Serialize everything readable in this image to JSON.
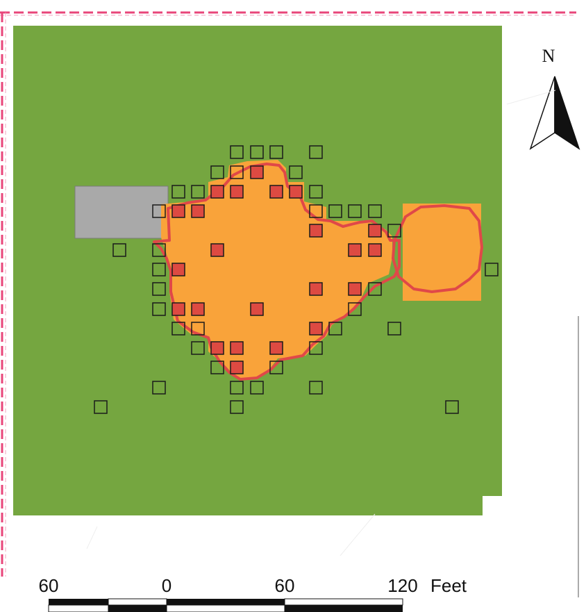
{
  "map": {
    "north_label": "N",
    "scale": {
      "labels": [
        "60",
        "0",
        "60",
        "120"
      ],
      "unit": "Feet"
    },
    "colors": {
      "background_field": "#75a640",
      "affected_area": "#f9a33a",
      "boundary_line": "#e04848",
      "building": "#a9a9a9",
      "sample_positive": "#dd4a42",
      "sample_outline": "#1a1a1a",
      "page_border_dash": "#e8457a"
    },
    "legend_note": "",
    "samples": {
      "positive_count": 25,
      "negative_count": 58
    }
  }
}
